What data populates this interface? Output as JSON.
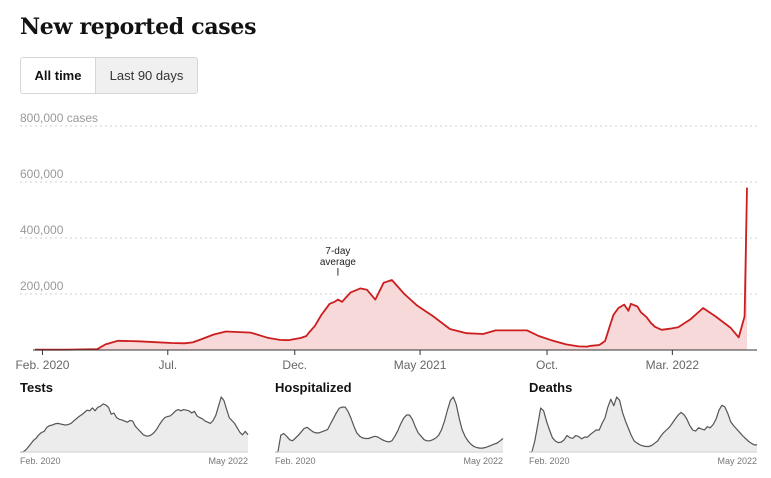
{
  "title": "New reported cases",
  "toggle": {
    "all_time": "All time",
    "last_90": "Last 90 days",
    "active": "all_time"
  },
  "colors": {
    "line": "#cc1e1e",
    "fill": "#f8d9d9",
    "grid": "#d0d0d0",
    "small_line": "#555555",
    "small_fill": "#ececec"
  },
  "chart_data": [
    {
      "type": "area",
      "title": "New reported cases",
      "ylabel": "cases",
      "ylim": [
        0,
        800000
      ],
      "yticks": [
        {
          "value": 200000,
          "label": "200,000"
        },
        {
          "value": 400000,
          "label": "400,000"
        },
        {
          "value": 600000,
          "label": "600,000"
        },
        {
          "value": 800000,
          "label": "800,000 cases"
        }
      ],
      "xlim": [
        0,
        870
      ],
      "xticks": [
        {
          "value": 9,
          "label": "Feb. 2020"
        },
        {
          "value": 160,
          "label": "Jul."
        },
        {
          "value": 313,
          "label": "Dec."
        },
        {
          "value": 464,
          "label": "May 2021"
        },
        {
          "value": 617,
          "label": "Oct."
        },
        {
          "value": 768,
          "label": "Mar. 2022"
        }
      ],
      "annotation": {
        "text": [
          "7-day",
          "average"
        ],
        "x": 365,
        "y": 255000
      },
      "series": [
        {
          "name": "7-day average",
          "x": [
            0,
            40,
            75,
            85,
            100,
            125,
            145,
            165,
            180,
            190,
            200,
            215,
            230,
            260,
            280,
            295,
            305,
            320,
            327,
            330,
            337,
            345,
            355,
            361,
            365,
            370,
            380,
            392,
            400,
            410,
            420,
            430,
            445,
            460,
            480,
            500,
            520,
            540,
            555,
            575,
            585,
            593,
            600,
            607,
            622,
            640,
            655,
            665,
            670,
            680,
            687,
            692,
            697,
            703,
            710,
            715,
            718,
            722,
            726,
            730,
            737,
            742,
            747,
            755,
            765,
            775,
            790,
            805,
            820,
            838,
            848,
            855,
            858
          ],
          "y": [
            1000,
            1000,
            3000,
            20000,
            33000,
            31000,
            28000,
            25000,
            24000,
            27000,
            38000,
            55000,
            66000,
            62000,
            44000,
            36000,
            35000,
            43000,
            50000,
            62000,
            85000,
            125000,
            165000,
            172000,
            180000,
            172000,
            205000,
            220000,
            215000,
            180000,
            240000,
            250000,
            200000,
            160000,
            120000,
            75000,
            60000,
            57000,
            70000,
            70000,
            70000,
            70000,
            60000,
            50000,
            35000,
            20000,
            13000,
            12000,
            15000,
            18000,
            32000,
            80000,
            125000,
            150000,
            162000,
            140000,
            165000,
            160000,
            155000,
            135000,
            117000,
            97000,
            83000,
            72000,
            76000,
            81000,
            110000,
            150000,
            120000,
            80000,
            45000,
            120000,
            580000
          ]
        }
      ]
    },
    {
      "type": "area",
      "title": "Tests",
      "xlabels": [
        "Feb. 2020",
        "May 2022"
      ],
      "series": [
        {
          "name": "Tests",
          "values": [
            0,
            0,
            3,
            8,
            14,
            20,
            24,
            30,
            34,
            36,
            43,
            46,
            47,
            49,
            50,
            49,
            48,
            47,
            48,
            50,
            54,
            58,
            62,
            65,
            69,
            73,
            72,
            77,
            72,
            78,
            80,
            84,
            82,
            78,
            66,
            68,
            60,
            57,
            56,
            54,
            52,
            55,
            54,
            45,
            40,
            35,
            30,
            28,
            28,
            30,
            34,
            40,
            48,
            55,
            60,
            62,
            63,
            67,
            72,
            74,
            72,
            74,
            73,
            72,
            68,
            71,
            63,
            60,
            58,
            54,
            52,
            50,
            55,
            64,
            80,
            96,
            90,
            75,
            60,
            55,
            50,
            42,
            34,
            30,
            36,
            30
          ]
        }
      ]
    },
    {
      "type": "area",
      "title": "Hospitalized",
      "xlabels": [
        "Feb. 2020",
        "May 2022"
      ],
      "series": [
        {
          "name": "Hospitalized",
          "values": [
            0,
            0,
            30,
            33,
            28,
            22,
            20,
            25,
            30,
            36,
            42,
            44,
            40,
            36,
            34,
            34,
            36,
            38,
            40,
            50,
            60,
            70,
            78,
            80,
            80,
            72,
            60,
            46,
            34,
            28,
            25,
            24,
            24,
            26,
            28,
            27,
            24,
            21,
            19,
            18,
            20,
            28,
            38,
            50,
            60,
            66,
            66,
            58,
            45,
            34,
            28,
            22,
            20,
            20,
            22,
            25,
            30,
            40,
            55,
            75,
            92,
            98,
            85,
            60,
            40,
            28,
            20,
            14,
            10,
            8,
            7,
            7,
            8,
            10,
            12,
            14,
            16,
            20,
            24
          ]
        }
      ]
    },
    {
      "type": "area",
      "title": "Deaths",
      "xlabels": [
        "Feb. 2020",
        "May 2022"
      ],
      "series": [
        {
          "name": "Deaths",
          "values": [
            0,
            0,
            20,
            50,
            80,
            75,
            56,
            40,
            26,
            20,
            17,
            18,
            22,
            30,
            26,
            25,
            30,
            28,
            24,
            27,
            27,
            32,
            36,
            40,
            40,
            52,
            62,
            82,
            96,
            84,
            100,
            94,
            72,
            56,
            43,
            30,
            20,
            16,
            13,
            11,
            10,
            10,
            12,
            16,
            20,
            28,
            35,
            40,
            45,
            52,
            60,
            67,
            72,
            68,
            60,
            48,
            40,
            38,
            44,
            42,
            40,
            46,
            44,
            50,
            60,
            76,
            85,
            82,
            70,
            55,
            48,
            42,
            36,
            30,
            25,
            20,
            16,
            13,
            13
          ]
        }
      ]
    }
  ]
}
